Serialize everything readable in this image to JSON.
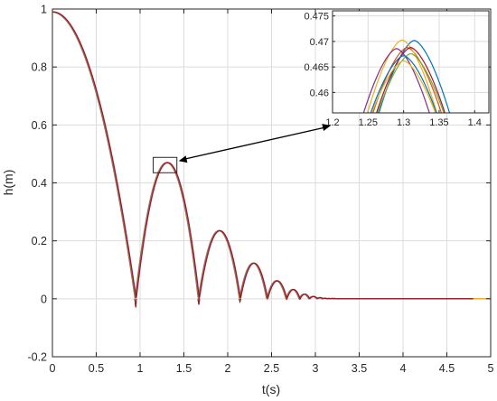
{
  "chart_data": [
    {
      "type": "line",
      "role": "main",
      "xlabel": "t(s)",
      "ylabel": "h(m)",
      "xlim": [
        0,
        5
      ],
      "ylim": [
        -0.2,
        1
      ],
      "xticks": [
        0,
        0.5,
        1,
        1.5,
        2,
        2.5,
        3,
        3.5,
        4,
        4.5,
        5
      ],
      "xtick_labels": [
        "0",
        "0.5",
        "1",
        "1.5",
        "2",
        "2.5",
        "3",
        "3.5",
        "4",
        "4.5",
        "5"
      ],
      "yticks": [
        -0.2,
        0,
        0.2,
        0.4,
        0.6,
        0.8,
        1
      ],
      "ytick_labels": [
        "-0.2",
        "0",
        "0.2",
        "0.4",
        "0.6",
        "0.8",
        "1"
      ],
      "grid": true,
      "series_shape": {
        "h0": 0.99,
        "bounce_times": [
          0.95,
          1.67,
          2.14,
          2.45,
          2.67,
          2.82,
          2.93,
          3.02,
          3.08,
          3.13,
          3.17,
          3.2,
          3.23,
          3.25,
          3.27,
          3.29,
          3.3
        ],
        "bounce_peaks": [
          0.47,
          0.235,
          0.123,
          0.062,
          0.032,
          0.016,
          0.008,
          0.004,
          0.002,
          0.001,
          0.001,
          0.001,
          0.0,
          0.0,
          0.0,
          0.0
        ]
      },
      "series": [
        {
          "color": "#0072BD",
          "end_t": 4.82
        },
        {
          "color": "#D95319",
          "end_t": 5.0
        },
        {
          "color": "#EDB120",
          "end_t": 5.0
        },
        {
          "color": "#7E2F8E",
          "end_t": 4.8
        },
        {
          "color": "#77AC30",
          "end_t": 4.8
        },
        {
          "color": "#A2142F",
          "end_t": 4.8
        }
      ],
      "zoom_box": {
        "t": [
          1.15,
          1.42
        ],
        "h": [
          0.435,
          0.488
        ]
      }
    },
    {
      "type": "line",
      "role": "inset",
      "xlim": [
        1.2,
        1.42
      ],
      "ylim": [
        0.456,
        0.476
      ],
      "xticks": [
        1.2,
        1.25,
        1.3,
        1.35,
        1.4
      ],
      "xtick_labels": [
        "1.2",
        "1.25",
        "1.3",
        "1.35",
        "1.4"
      ],
      "yticks": [
        0.46,
        0.465,
        0.47,
        0.475
      ],
      "ytick_labels": [
        "0.46",
        "0.465",
        "0.47",
        "0.475"
      ],
      "grid": true,
      "series": [
        {
          "color": "#0072BD",
          "peak_t": 1.315,
          "peak_h": 0.4702,
          "half_width": 0.058
        },
        {
          "color": "#D95319",
          "peak_t": 1.305,
          "peak_h": 0.4688,
          "half_width": 0.057
        },
        {
          "color": "#EDB120",
          "peak_t": 1.298,
          "peak_h": 0.4703,
          "half_width": 0.057
        },
        {
          "color": "#7E2F8E",
          "peak_t": 1.29,
          "peak_h": 0.4686,
          "half_width": 0.055
        },
        {
          "color": "#77AC30",
          "peak_t": 1.31,
          "peak_h": 0.4676,
          "half_width": 0.056
        },
        {
          "color": "#A2142F",
          "peak_t": 1.31,
          "peak_h": 0.4688,
          "half_width": 0.057
        },
        {
          "color": "#0072BD",
          "peak_t": 1.3,
          "peak_h": 0.4672,
          "half_width": 0.056
        },
        {
          "color": "#EDB120",
          "peak_t": 1.3,
          "peak_h": 0.4662,
          "half_width": 0.055
        }
      ]
    }
  ]
}
